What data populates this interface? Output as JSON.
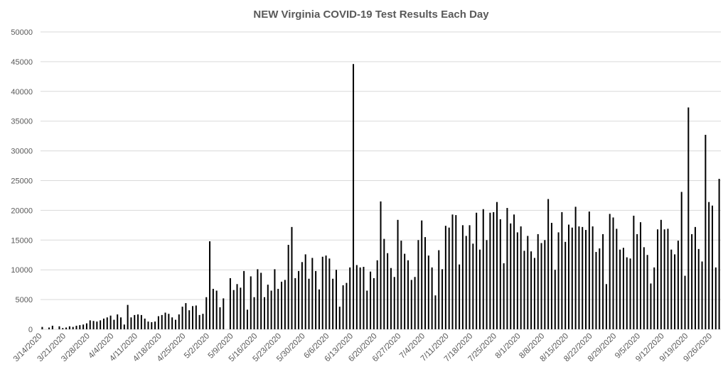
{
  "chart_data": {
    "type": "bar",
    "title": "NEW Virginia COVID-19 Test Results Each Day",
    "xlabel": "",
    "ylabel": "",
    "ylim": [
      0,
      50000
    ],
    "yticks": [
      0,
      5000,
      10000,
      15000,
      20000,
      25000,
      30000,
      35000,
      40000,
      45000,
      50000
    ],
    "grid": true,
    "legend": "none",
    "bar_color": "#000000",
    "start_date": "3/14/2020",
    "xtick_labels": [
      "3/14/2020",
      "3/21/2020",
      "3/28/2020",
      "4/4/2020",
      "4/11/2020",
      "4/18/2020",
      "4/25/2020",
      "5/2/2020",
      "5/9/2020",
      "5/16/2020",
      "5/23/2020",
      "5/30/2020",
      "6/6/2020",
      "6/13/2020",
      "6/20/2020",
      "6/27/2020",
      "7/4/2020",
      "7/11/2020",
      "7/18/2020",
      "7/25/2020",
      "8/1/2020",
      "8/8/2020",
      "8/15/2020",
      "8/22/2020",
      "8/29/2020",
      "9/5/2020",
      "9/12/2020",
      "9/19/2020",
      "9/26/2020"
    ],
    "values": [
      400,
      0,
      300,
      600,
      0,
      500,
      200,
      300,
      500,
      400,
      600,
      700,
      800,
      1000,
      1500,
      1400,
      1300,
      1500,
      1800,
      2000,
      2300,
      1600,
      2500,
      2000,
      800,
      4100,
      2000,
      2400,
      2500,
      2400,
      1800,
      1300,
      1200,
      1300,
      2200,
      2400,
      2800,
      2600,
      2000,
      1600,
      2500,
      3800,
      4400,
      3200,
      3900,
      4000,
      2400,
      2600,
      5400,
      14800,
      6800,
      6500,
      3700,
      5200,
      0,
      8600,
      6600,
      7600,
      7000,
      9800,
      3300,
      8900,
      5400,
      10100,
      9500,
      5400,
      7500,
      6500,
      10100,
      6800,
      8000,
      8300,
      14200,
      17200,
      8600,
      9800,
      11300,
      12600,
      8500,
      12000,
      9800,
      6700,
      12200,
      12400,
      11900,
      8500,
      10000,
      3800,
      7400,
      7800,
      10400,
      44600,
      10800,
      10400,
      10500,
      6500,
      9700,
      8600,
      11600,
      21500,
      15200,
      12800,
      10300,
      8800,
      18400,
      14900,
      12700,
      11600,
      8300,
      8800,
      15000,
      18300,
      15500,
      12400,
      10400,
      5700,
      13300,
      10100,
      17400,
      17100,
      19300,
      19200,
      10900,
      17500,
      15700,
      17500,
      14400,
      19600,
      13400,
      20200,
      15000,
      19600,
      19700,
      21400,
      18500,
      11100,
      20400,
      17800,
      19300,
      16300,
      17300,
      13200,
      15700,
      13100,
      12000,
      16000,
      14500,
      15000,
      21900,
      17900,
      10000,
      16300,
      19700,
      14700,
      17600,
      17100,
      20600,
      17300,
      17200,
      16700,
      19800,
      17300,
      13000,
      13600,
      16000,
      7600,
      19400,
      18800,
      16900,
      13400,
      13700,
      12100,
      11900,
      19100,
      16000,
      18000,
      13800,
      12500,
      7700,
      10400,
      16800,
      18400,
      16800,
      16900,
      13400,
      12600,
      14900,
      23100,
      9000,
      37300,
      16000,
      17200,
      13500,
      11400,
      32700,
      21400,
      20800,
      10400,
      25300
    ]
  }
}
